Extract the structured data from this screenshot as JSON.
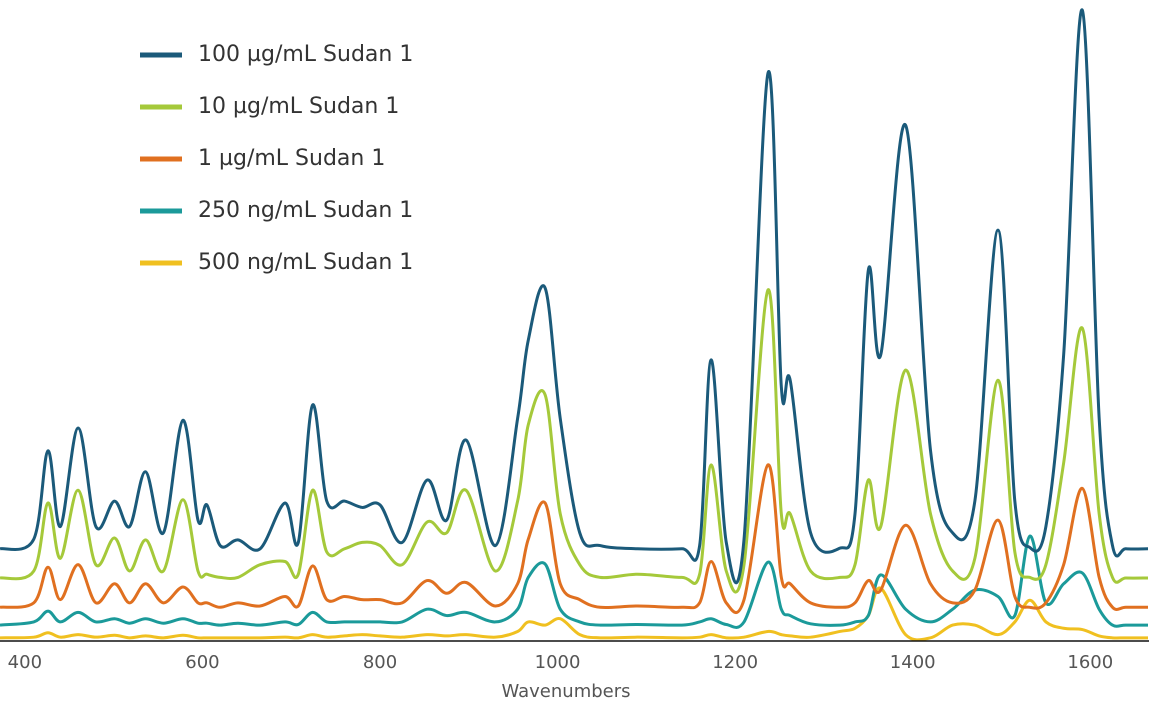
{
  "chart_data": {
    "type": "line",
    "x_label": "Wavenumbers",
    "xlim": [
      372,
      1665
    ],
    "ylim": [
      0,
      100
    ],
    "xticks": [
      400,
      600,
      800,
      1000,
      1200,
      1400,
      1600
    ],
    "x": [
      372,
      410,
      426,
      440,
      460,
      480,
      501,
      518,
      536,
      556,
      578,
      595,
      605,
      620,
      640,
      665,
      693,
      708,
      724,
      740,
      760,
      780,
      800,
      825,
      853,
      875,
      897,
      930,
      955,
      967,
      986,
      1003,
      1025,
      1048,
      1090,
      1140,
      1160,
      1173,
      1190,
      1210,
      1237,
      1252,
      1262,
      1285,
      1318,
      1335,
      1350,
      1364,
      1392,
      1420,
      1445,
      1470,
      1496,
      1515,
      1532,
      1550,
      1570,
      1591,
      1610,
      1625,
      1640,
      1665
    ],
    "series": [
      {
        "name": "100 µg/mL Sudan 1",
        "color": "#1b5a7a",
        "values": [
          14.5,
          16,
          29.9,
          18,
          33.5,
          18,
          22,
          18,
          26.6,
          17,
          34.7,
          19,
          21.4,
          15,
          15.9,
          14.5,
          21.7,
          15.5,
          37.1,
          22,
          22,
          21,
          21.4,
          15.5,
          25.3,
          19,
          31.6,
          15,
          35,
          47.3,
          55.5,
          35,
          17,
          15,
          14.5,
          14.5,
          15,
          44.2,
          15.5,
          16,
          89.3,
          40,
          41,
          17,
          14.6,
          20,
          58.3,
          45,
          81.1,
          30,
          17,
          22,
          64.6,
          22,
          14.7,
          18,
          45,
          99.2,
          35,
          15,
          14.5,
          14.5
        ]
      },
      {
        "name": "10 µg/mL Sudan 1",
        "color": "#a5c93a",
        "values": [
          9.9,
          11,
          21.7,
          13,
          23.7,
          12,
          16.2,
          11,
          15.9,
          11,
          22.2,
          11,
          10.5,
          10,
          10,
          12,
          12.5,
          10.5,
          23.7,
          14,
          14.5,
          15.5,
          15,
          12,
          18.7,
          17,
          23.7,
          11,
          22,
          34,
          38.7,
          20,
          12,
          10,
          10.5,
          10,
          10.5,
          27.7,
          11,
          12,
          55.2,
          20,
          20,
          11,
          10,
          12,
          25.3,
          18,
          42.6,
          20,
          11,
          13,
          41,
          14,
          10,
          12,
          28,
          49.2,
          20,
          10,
          9.9,
          9.9
        ]
      },
      {
        "name": "1 µg/mL Sudan 1",
        "color": "#e07020",
        "values": [
          5.3,
          6,
          11.6,
          6.5,
          12,
          6,
          9,
          6,
          9,
          6,
          8.5,
          6,
          6,
          5.3,
          6,
          5.5,
          7,
          5.5,
          11.8,
          6.5,
          7,
          6.5,
          6.5,
          6,
          9.5,
          7.5,
          9.2,
          5.5,
          9,
          16,
          21.7,
          9,
          6.5,
          5.3,
          5.5,
          5.3,
          6,
          12.5,
          6,
          6.5,
          27.7,
          10,
          9,
          6,
          5.3,
          6,
          9.5,
          8,
          18.2,
          9,
          6,
          8,
          19,
          7,
          5.3,
          6,
          12,
          24,
          10,
          5.3,
          5.3,
          5.3
        ]
      },
      {
        "name": "250 ng/mL Sudan 1",
        "color": "#1b9a9a",
        "values": [
          2.5,
          3,
          4.7,
          3,
          4.5,
          3,
          3.5,
          2.8,
          3.5,
          2.8,
          3.5,
          2.8,
          2.8,
          2.5,
          2.8,
          2.5,
          3,
          2.6,
          4.5,
          3,
          3,
          3,
          3,
          3,
          5,
          4,
          4.5,
          3,
          5,
          10,
          12.1,
          5,
          3,
          2.5,
          2.6,
          2.5,
          3,
          3.5,
          2.6,
          3,
          12.4,
          5,
          4,
          2.7,
          2.5,
          3,
          4,
          10.4,
          5,
          3,
          5,
          8,
          7,
          4,
          16.5,
          6,
          9,
          10.7,
          5,
          2.5,
          2.5,
          2.5
        ]
      },
      {
        "name": "500 ng/mL Sudan 1",
        "color": "#f0c020",
        "values": [
          0.5,
          0.6,
          1.3,
          0.6,
          1,
          0.6,
          0.9,
          0.5,
          0.8,
          0.5,
          0.9,
          0.5,
          0.5,
          0.5,
          0.5,
          0.5,
          0.6,
          0.5,
          1,
          0.6,
          0.8,
          1,
          0.8,
          0.6,
          1,
          0.8,
          1,
          0.6,
          1.5,
          3,
          2.5,
          3.5,
          1,
          0.5,
          0.6,
          0.5,
          0.6,
          1,
          0.5,
          0.6,
          1.5,
          1,
          0.8,
          0.6,
          1.5,
          2,
          4,
          8.3,
          1,
          0.5,
          2.5,
          2.5,
          1,
          3,
          6.4,
          3,
          2,
          1.8,
          0.8,
          0.5,
          0.5,
          0.5
        ]
      }
    ]
  }
}
